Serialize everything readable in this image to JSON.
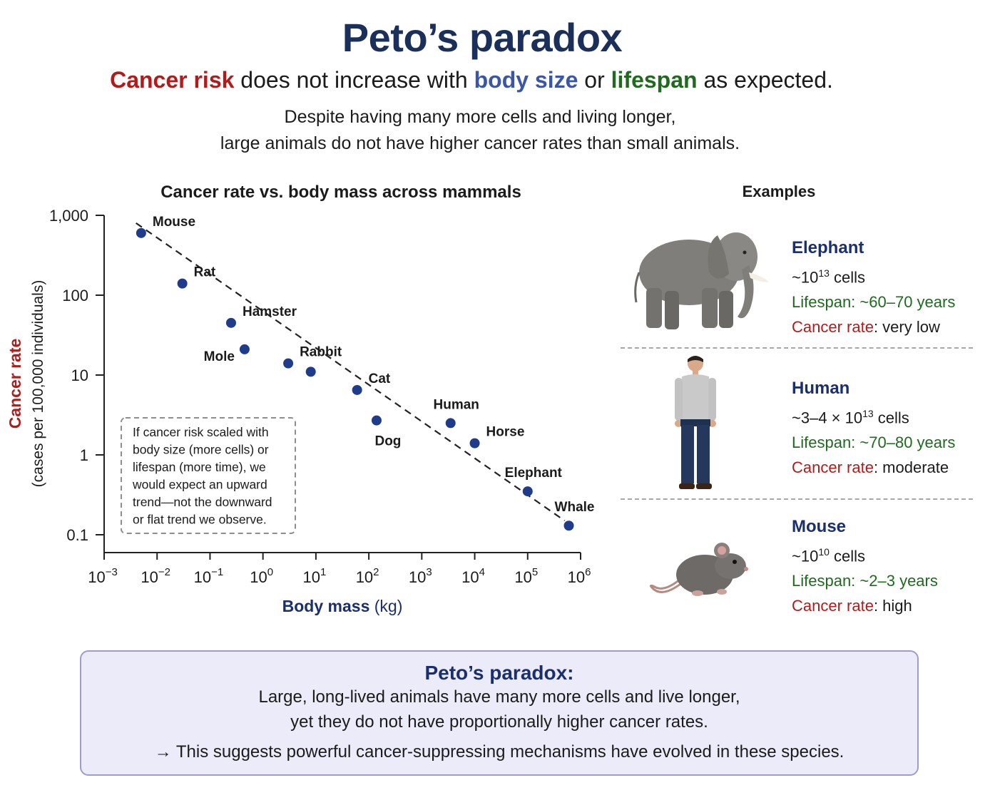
{
  "header": {
    "title": "Peto’s paradox",
    "subtitle_parts": [
      {
        "text": "Cancer risk",
        "tone": "red"
      },
      {
        "text": " does not increase with ",
        "tone": "plain"
      },
      {
        "text": "body size",
        "tone": "blue"
      },
      {
        "text": " or ",
        "tone": "plain"
      },
      {
        "text": "lifespan",
        "tone": "green"
      },
      {
        "text": " as expected.",
        "tone": "plain"
      }
    ],
    "description_line1": "Despite having many more cells and living longer,",
    "description_line2": "large animals do not have higher cancer rates than small animals."
  },
  "chart_data": {
    "type": "scatter",
    "title": "Cancer rate vs. body mass across mammals",
    "xlabel_main": "Body mass",
    "xlabel_unit": " (kg)",
    "ylabel_main": "Cancer rate",
    "ylabel_sub": "(cases per 100,000 individuals)",
    "x_scale": "log",
    "y_scale": "log",
    "xlim": [
      0.001,
      1000000
    ],
    "ylim": [
      0.1,
      1000
    ],
    "x_ticks": [
      {
        "base": "10",
        "exp": "−3"
      },
      {
        "base": "10",
        "exp": "−2"
      },
      {
        "base": "10",
        "exp": "−1"
      },
      {
        "base": "10",
        "exp": "0"
      },
      {
        "base": "10",
        "exp": "1"
      },
      {
        "base": "10",
        "exp": "2"
      },
      {
        "base": "10",
        "exp": "3"
      },
      {
        "base": "10",
        "exp": "4"
      },
      {
        "base": "10",
        "exp": "5"
      },
      {
        "base": "10",
        "exp": "6"
      }
    ],
    "y_ticks": [
      "1,000",
      "100",
      "10",
      "1",
      "0.1"
    ],
    "grid": false,
    "trend_line": {
      "style": "dashed",
      "from": [
        0.004,
        800
      ],
      "to": [
        500000,
        0.15
      ]
    },
    "points": [
      {
        "label": "Mouse",
        "x": 0.005,
        "y": 600,
        "label_pos": "upper-right"
      },
      {
        "label": "Rat",
        "x": 0.03,
        "y": 140,
        "label_pos": "upper-right"
      },
      {
        "label": "Hamster",
        "x": 0.25,
        "y": 45,
        "label_pos": "upper-right"
      },
      {
        "label": "Mole",
        "x": 0.45,
        "y": 21,
        "label_pos": "left"
      },
      {
        "label": "Rabbit",
        "x": 3,
        "y": 14,
        "label_pos": "upper-right"
      },
      {
        "label": "",
        "x": 8,
        "y": 11,
        "label_pos": "none"
      },
      {
        "label": "Cat",
        "x": 60,
        "y": 6.5,
        "label_pos": "upper-right"
      },
      {
        "label": "Dog",
        "x": 140,
        "y": 2.7,
        "label_pos": "below"
      },
      {
        "label": "Human",
        "x": 3500,
        "y": 2.5,
        "label_pos": "above"
      },
      {
        "label": "Horse",
        "x": 10000,
        "y": 1.4,
        "label_pos": "upper-right"
      },
      {
        "label": "Elephant",
        "x": 100000,
        "y": 0.35,
        "label_pos": "above"
      },
      {
        "label": "Whale",
        "x": 600000,
        "y": 0.13,
        "label_pos": "above"
      }
    ],
    "annotation": [
      "If cancer risk scaled with",
      "body size (more cells) or",
      "lifespan (more time), we",
      "would expect an upward",
      "trend—not the downward",
      "or flat trend we observe."
    ],
    "point_color": "#1f3c8c"
  },
  "examples": {
    "heading": "Examples",
    "items": [
      {
        "name": "Elephant",
        "cells_prefix": "~10",
        "cells_exp": "13",
        "cells_suffix": " cells",
        "lifespan": "Lifespan: ~60–70 years",
        "cancer_label": "Cancer rate",
        "cancer_value": ": very low"
      },
      {
        "name": "Human",
        "cells_prefix": "~3–4 × 10",
        "cells_exp": "13",
        "cells_suffix": " cells",
        "lifespan": "Lifespan: ~70–80 years",
        "cancer_label": "Cancer rate",
        "cancer_value": ": moderate"
      },
      {
        "name": "Mouse",
        "cells_prefix": "~10",
        "cells_exp": "10",
        "cells_suffix": " cells",
        "lifespan": "Lifespan: ~2–3 years",
        "cancer_label": "Cancer rate",
        "cancer_value": ": high"
      }
    ]
  },
  "summary": {
    "title": "Peto’s paradox:",
    "line1": "Large, long-lived animals have many more cells and live longer,",
    "line2": "yet they do not have proportionally higher cancer rates.",
    "arrow": "→",
    "line3": " This suggests powerful cancer-suppressing mechanisms have evolved in these species."
  },
  "colors": {
    "title": "#1a2f5a",
    "cancer_red": "#b01c1c",
    "size_blue": "#3a56a6",
    "lifespan_green": "#1f6a1f",
    "summary_bg": "#ecebf9",
    "summary_border": "#9f9bd0"
  }
}
